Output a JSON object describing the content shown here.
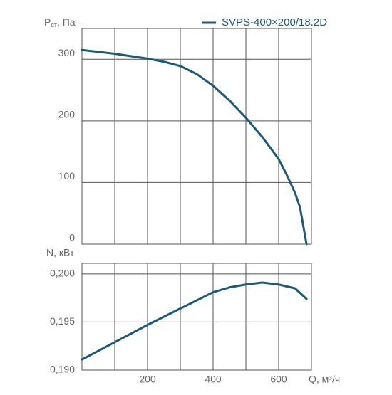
{
  "chart_data": [
    {
      "type": "line",
      "y_label": {
        "main": "P",
        "sub": "ст",
        "rest": ", Па"
      },
      "legend": "top-right",
      "series": [
        {
          "name": "SVPS-400×200/18.2D",
          "color": "#1b5a78",
          "x": [
            0,
            50,
            100,
            150,
            200,
            250,
            300,
            350,
            400,
            450,
            500,
            550,
            600,
            625,
            650,
            665,
            685
          ],
          "values": [
            315,
            312,
            309,
            305,
            301,
            296,
            289,
            276,
            257,
            233,
            205,
            174,
            138,
            112,
            83,
            60,
            0
          ]
        }
      ],
      "xlim": [
        0,
        700
      ],
      "ylim": [
        0,
        350
      ],
      "yticks": [
        0,
        100,
        200,
        300
      ],
      "grid": true
    },
    {
      "type": "line",
      "y_label": "N, кВт",
      "x_label": "Q, м³/ч",
      "series": [
        {
          "name": "SVPS-400×200/18.2D",
          "color": "#1b5a78",
          "x": [
            0,
            100,
            200,
            300,
            400,
            450,
            500,
            550,
            600,
            650,
            685
          ],
          "values": [
            0.1911,
            0.1929,
            0.1947,
            0.1964,
            0.1981,
            0.1986,
            0.1989,
            0.1991,
            0.1989,
            0.1985,
            0.1974
          ]
        }
      ],
      "xlim": [
        0,
        700
      ],
      "xticks": [
        {
          "value": 100,
          "label": null
        },
        200,
        {
          "value": 300,
          "label": null
        },
        400,
        {
          "value": 500,
          "label": null
        },
        600,
        {
          "value": 700,
          "label": null
        }
      ],
      "ylim": [
        0.19,
        0.2011
      ],
      "yticks": [
        {
          "value": 0.19,
          "label": "0,190"
        },
        {
          "value": 0.195,
          "label": "0,195"
        },
        {
          "value": 0.2,
          "label": "0,200"
        }
      ],
      "grid": true
    }
  ]
}
